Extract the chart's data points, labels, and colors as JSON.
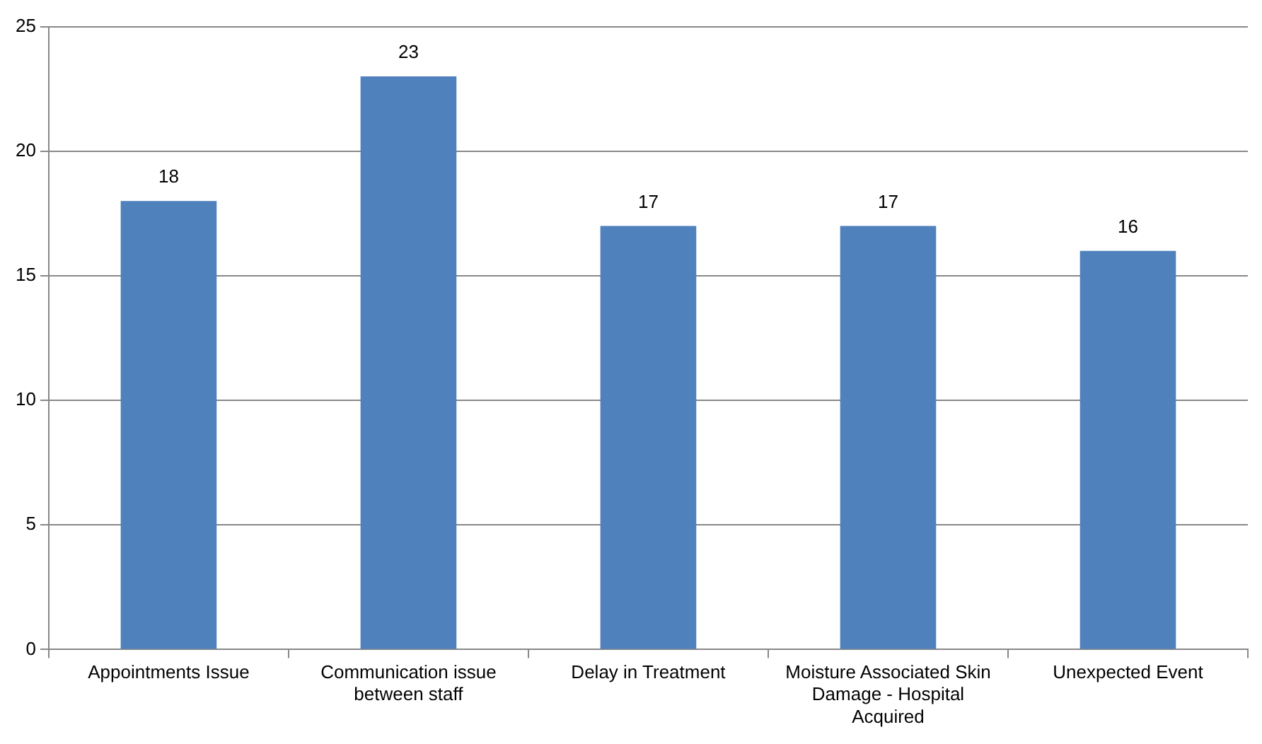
{
  "chart_data": {
    "type": "bar",
    "categories": [
      "Appointments Issue",
      "Communication issue between staff",
      "Delay in Treatment",
      "Moisture Associated Skin Damage - Hospital Acquired",
      "Unexpected Event"
    ],
    "values": [
      18,
      23,
      17,
      17,
      16
    ],
    "color": "#4f81bd",
    "ylim": [
      0,
      25
    ],
    "yticks": [
      0,
      5,
      10,
      15,
      20,
      25
    ],
    "grid": "y",
    "data_labels": true
  }
}
